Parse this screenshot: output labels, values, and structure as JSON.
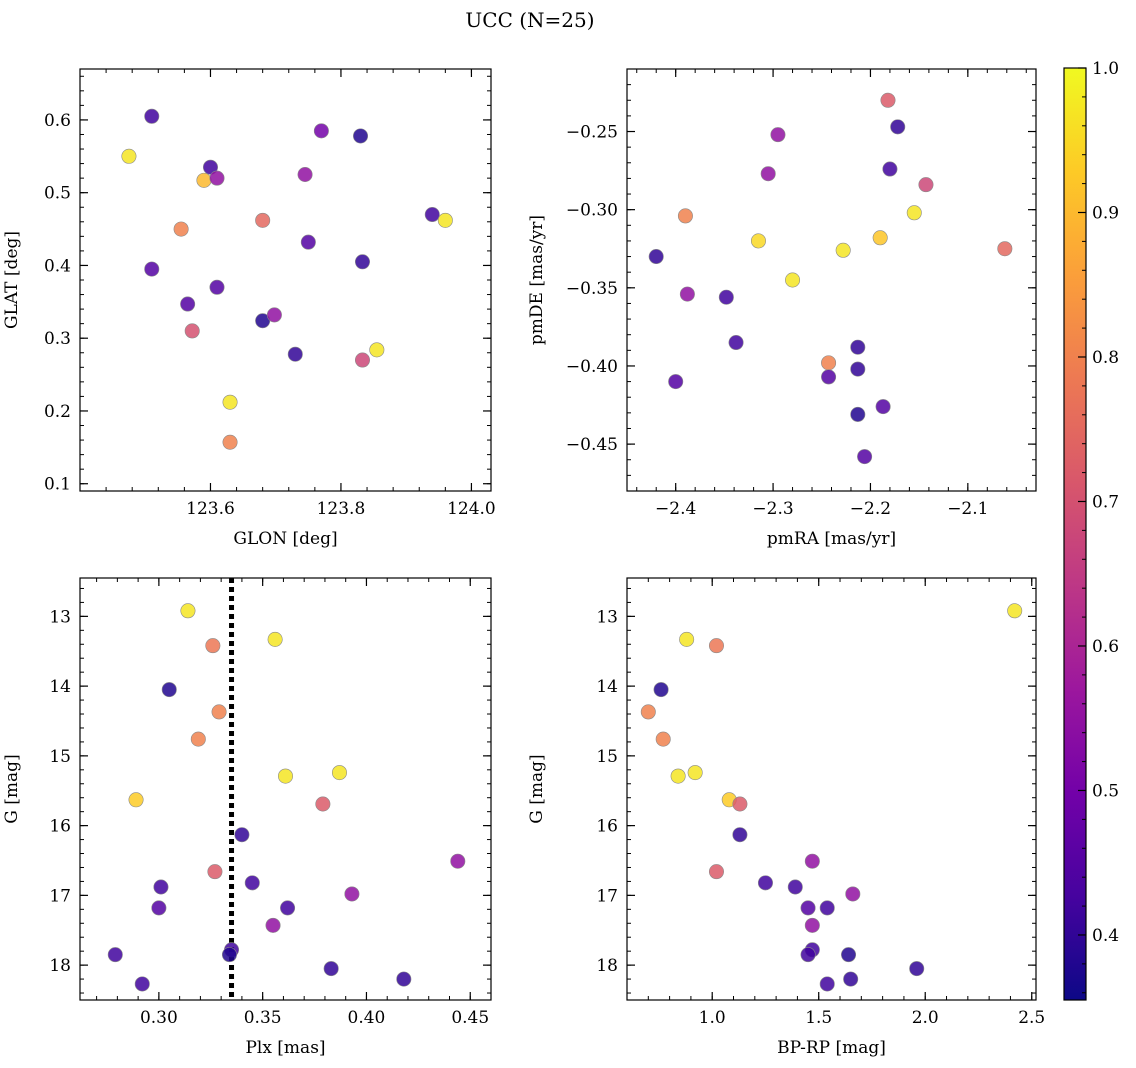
{
  "figure": {
    "title": "UCC (N=25)"
  },
  "colorbar": {
    "range": [
      0.355,
      1.0
    ],
    "ticks": [
      0.4,
      0.5,
      0.6,
      0.7,
      0.8,
      0.9,
      1.0
    ],
    "tick_labels": [
      "0.4",
      "0.5",
      "0.6",
      "0.7",
      "0.8",
      "0.9",
      "1.0"
    ],
    "stops": [
      "#0d0887",
      "#46039f",
      "#7201a8",
      "#9c179e",
      "#bd3786",
      "#d8576b",
      "#ed7953",
      "#fb9f3a",
      "#fdca26",
      "#f0f921"
    ]
  },
  "chart_data": [
    {
      "type": "scatter",
      "id": "glon-glat",
      "xlabel": "GLON [deg]",
      "ylabel": "GLAT [deg]",
      "xlim": [
        123.4,
        124.03
      ],
      "ylim": [
        0.09,
        0.67
      ],
      "y_inverted": false,
      "xticks": [
        123.6,
        123.8,
        124.0
      ],
      "xtick_labels": [
        "123.6",
        "123.8",
        "124.0"
      ],
      "yticks": [
        0.1,
        0.2,
        0.3,
        0.4,
        0.5,
        0.6
      ],
      "ytick_labels": [
        "0.1",
        "0.2",
        "0.3",
        "0.4",
        "0.5",
        "0.6"
      ],
      "points": [
        [
          123.51,
          0.605,
          0.42
        ],
        [
          123.475,
          0.55,
          0.97
        ],
        [
          123.59,
          0.517,
          0.9
        ],
        [
          123.6,
          0.535,
          0.42
        ],
        [
          123.61,
          0.52,
          0.55
        ],
        [
          123.555,
          0.45,
          0.8
        ],
        [
          123.68,
          0.462,
          0.75
        ],
        [
          123.745,
          0.525,
          0.55
        ],
        [
          123.77,
          0.585,
          0.5
        ],
        [
          123.83,
          0.578,
          0.38
        ],
        [
          123.94,
          0.47,
          0.42
        ],
        [
          123.96,
          0.462,
          0.97
        ],
        [
          123.75,
          0.432,
          0.45
        ],
        [
          123.833,
          0.405,
          0.4
        ],
        [
          123.51,
          0.395,
          0.45
        ],
        [
          123.61,
          0.37,
          0.45
        ],
        [
          123.565,
          0.347,
          0.45
        ],
        [
          123.572,
          0.31,
          0.7
        ],
        [
          123.68,
          0.324,
          0.38
        ],
        [
          123.698,
          0.332,
          0.55
        ],
        [
          123.73,
          0.278,
          0.4
        ],
        [
          123.833,
          0.27,
          0.68
        ],
        [
          123.855,
          0.284,
          0.97
        ],
        [
          123.63,
          0.212,
          0.97
        ],
        [
          123.63,
          0.157,
          0.8
        ]
      ]
    },
    {
      "type": "scatter",
      "id": "pmra-pmde",
      "xlabel": "pmRA [mas/yr]",
      "ylabel": "pmDE [mas/yr]",
      "xlim": [
        -2.45,
        -2.03
      ],
      "ylim": [
        -0.48,
        -0.21
      ],
      "y_inverted": false,
      "xticks": [
        -2.4,
        -2.3,
        -2.2,
        -2.1
      ],
      "xtick_labels": [
        "−2.4",
        "−2.3",
        "−2.2",
        "−2.1"
      ],
      "yticks": [
        -0.45,
        -0.4,
        -0.35,
        -0.3,
        -0.25
      ],
      "ytick_labels": [
        "−0.45",
        "−0.40",
        "−0.35",
        "−0.30",
        "−0.25"
      ],
      "points": [
        [
          -2.182,
          -0.23,
          0.72
        ],
        [
          -2.172,
          -0.247,
          0.4
        ],
        [
          -2.295,
          -0.252,
          0.55
        ],
        [
          -2.18,
          -0.274,
          0.42
        ],
        [
          -2.305,
          -0.277,
          0.55
        ],
        [
          -2.143,
          -0.284,
          0.68
        ],
        [
          -2.39,
          -0.304,
          0.8
        ],
        [
          -2.155,
          -0.302,
          0.97
        ],
        [
          -2.315,
          -0.32,
          0.95
        ],
        [
          -2.19,
          -0.318,
          0.92
        ],
        [
          -2.228,
          -0.326,
          0.97
        ],
        [
          -2.062,
          -0.325,
          0.75
        ],
        [
          -2.42,
          -0.33,
          0.4
        ],
        [
          -2.28,
          -0.345,
          0.97
        ],
        [
          -2.388,
          -0.354,
          0.55
        ],
        [
          -2.348,
          -0.356,
          0.42
        ],
        [
          -2.338,
          -0.385,
          0.42
        ],
        [
          -2.213,
          -0.388,
          0.4
        ],
        [
          -2.243,
          -0.398,
          0.8
        ],
        [
          -2.213,
          -0.402,
          0.4
        ],
        [
          -2.243,
          -0.407,
          0.45
        ],
        [
          -2.4,
          -0.41,
          0.45
        ],
        [
          -2.187,
          -0.426,
          0.45
        ],
        [
          -2.213,
          -0.431,
          0.38
        ],
        [
          -2.206,
          -0.458,
          0.45
        ]
      ]
    },
    {
      "type": "scatter",
      "id": "plx-g",
      "xlabel": "Plx [mas]",
      "ylabel": "G [mag]",
      "xlim": [
        0.262,
        0.46
      ],
      "ylim": [
        12.45,
        18.5
      ],
      "y_inverted": true,
      "xticks": [
        0.3,
        0.35,
        0.4,
        0.45
      ],
      "xtick_labels": [
        "0.30",
        "0.35",
        "0.40",
        "0.45"
      ],
      "yticks": [
        13,
        14,
        15,
        16,
        17,
        18
      ],
      "ytick_labels": [
        "13",
        "14",
        "15",
        "16",
        "17",
        "18"
      ],
      "vline": {
        "x": 0.335,
        "style": "dotted"
      },
      "points": [
        [
          0.314,
          12.92,
          0.97
        ],
        [
          0.356,
          13.33,
          0.97
        ],
        [
          0.326,
          13.42,
          0.78
        ],
        [
          0.305,
          14.05,
          0.38
        ],
        [
          0.329,
          14.37,
          0.8
        ],
        [
          0.319,
          14.76,
          0.8
        ],
        [
          0.361,
          15.29,
          0.97
        ],
        [
          0.387,
          15.24,
          0.97
        ],
        [
          0.289,
          15.63,
          0.93
        ],
        [
          0.379,
          15.69,
          0.72
        ],
        [
          0.34,
          16.13,
          0.4
        ],
        [
          0.444,
          16.51,
          0.55
        ],
        [
          0.327,
          16.66,
          0.72
        ],
        [
          0.345,
          16.82,
          0.42
        ],
        [
          0.301,
          16.88,
          0.42
        ],
        [
          0.393,
          16.98,
          0.55
        ],
        [
          0.3,
          17.18,
          0.45
        ],
        [
          0.362,
          17.18,
          0.42
        ],
        [
          0.355,
          17.43,
          0.55
        ],
        [
          0.335,
          17.78,
          0.42
        ],
        [
          0.279,
          17.85,
          0.42
        ],
        [
          0.334,
          17.85,
          0.38
        ],
        [
          0.383,
          18.05,
          0.4
        ],
        [
          0.292,
          18.27,
          0.42
        ],
        [
          0.418,
          18.2,
          0.4
        ]
      ]
    },
    {
      "type": "scatter",
      "id": "bprp-g",
      "xlabel": "BP-RP [mag]",
      "ylabel": "G [mag]",
      "xlim": [
        0.6,
        2.52
      ],
      "ylim": [
        12.45,
        18.5
      ],
      "y_inverted": true,
      "xticks": [
        1.0,
        1.5,
        2.0,
        2.5
      ],
      "xtick_labels": [
        "1.0",
        "1.5",
        "2.0",
        "2.5"
      ],
      "yticks": [
        13,
        14,
        15,
        16,
        17,
        18
      ],
      "ytick_labels": [
        "13",
        "14",
        "15",
        "16",
        "17",
        "18"
      ],
      "points": [
        [
          2.42,
          12.92,
          0.97
        ],
        [
          0.88,
          13.33,
          0.97
        ],
        [
          1.02,
          13.42,
          0.78
        ],
        [
          0.76,
          14.05,
          0.38
        ],
        [
          0.7,
          14.37,
          0.8
        ],
        [
          0.77,
          14.76,
          0.8
        ],
        [
          0.84,
          15.29,
          0.97
        ],
        [
          0.92,
          15.24,
          0.97
        ],
        [
          1.08,
          15.63,
          0.93
        ],
        [
          1.13,
          15.69,
          0.72
        ],
        [
          1.13,
          16.13,
          0.4
        ],
        [
          1.47,
          16.51,
          0.55
        ],
        [
          1.02,
          16.66,
          0.72
        ],
        [
          1.25,
          16.82,
          0.42
        ],
        [
          1.39,
          16.88,
          0.42
        ],
        [
          1.66,
          16.98,
          0.55
        ],
        [
          1.45,
          17.18,
          0.45
        ],
        [
          1.54,
          17.18,
          0.42
        ],
        [
          1.47,
          17.43,
          0.55
        ],
        [
          1.47,
          17.78,
          0.42
        ],
        [
          1.45,
          17.85,
          0.42
        ],
        [
          1.64,
          17.85,
          0.38
        ],
        [
          1.96,
          18.05,
          0.4
        ],
        [
          1.54,
          18.27,
          0.42
        ],
        [
          1.65,
          18.2,
          0.4
        ]
      ]
    }
  ]
}
